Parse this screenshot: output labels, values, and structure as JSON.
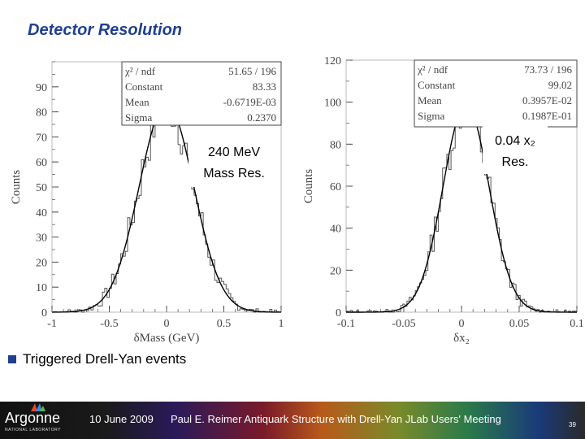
{
  "slide": {
    "title": "Detector Resolution",
    "bullet": "Triggered Drell-Yan events"
  },
  "footer": {
    "logo": "Argonne",
    "logo_sub": "NATIONAL LABORATORY",
    "date": "10 June 2009",
    "text": "Paul E. Reimer  Antiquark Structure with Drell-Yan JLab Users' Meeting",
    "page": "39"
  },
  "chart_data": [
    {
      "type": "histogram",
      "xlabel": "δMass (GeV)",
      "ylabel": "Counts",
      "xlim": [
        -1,
        1
      ],
      "ylim": [
        0,
        100
      ],
      "xticks": [
        "-1",
        "-0.5",
        "0",
        "0.5",
        "1"
      ],
      "yticks": [
        "0",
        "10",
        "20",
        "30",
        "40",
        "50",
        "60",
        "70",
        "80",
        "90"
      ],
      "stats": [
        {
          "label": "χ² / ndf",
          "value": "51.65   /  196"
        },
        {
          "label": "Constant",
          "value": "83.33"
        },
        {
          "label": "Mean",
          "value": "-0.6719E-03"
        },
        {
          "label": "Sigma",
          "value": "0.2370"
        }
      ],
      "fit": {
        "constant": 83.33,
        "mean": -0.0006719,
        "sigma": 0.237
      },
      "annotation": [
        "240 MeV",
        "Mass Res."
      ]
    },
    {
      "type": "histogram",
      "xlabel": "δx₂",
      "ylabel": "Counts",
      "xlim": [
        -0.1,
        0.1
      ],
      "ylim": [
        0,
        120
      ],
      "xticks": [
        "-0.1",
        "-0.05",
        "0",
        "0.05",
        "0.1"
      ],
      "yticks": [
        "0",
        "20",
        "40",
        "60",
        "80",
        "100",
        "120"
      ],
      "stats": [
        {
          "label": "χ² / ndf",
          "value": "73.73   /  196"
        },
        {
          "label": "Constant",
          "value": "99.02"
        },
        {
          "label": "Mean",
          "value": "0.3957E-02"
        },
        {
          "label": "Sigma",
          "value": "0.1987E-01"
        }
      ],
      "fit": {
        "constant": 99.02,
        "mean": 0.003957,
        "sigma": 0.01987
      },
      "annotation": [
        "0.04 x₂",
        "Res."
      ]
    }
  ]
}
